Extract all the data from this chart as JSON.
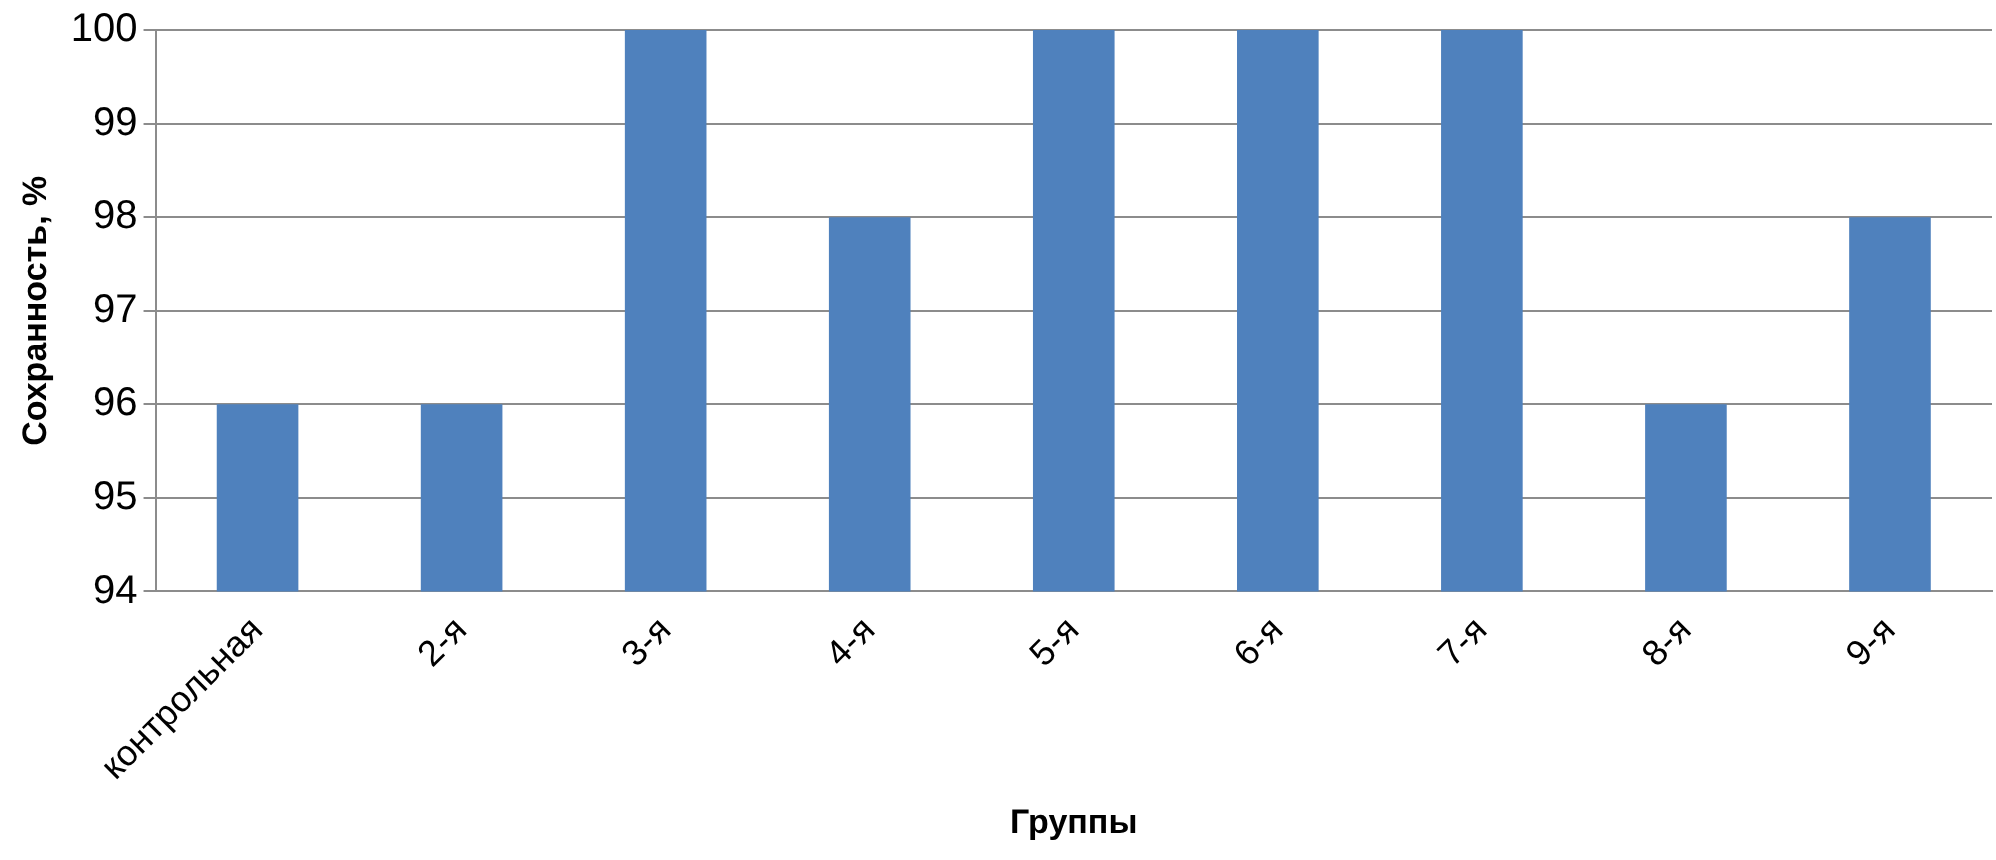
{
  "chart_data": {
    "type": "bar",
    "xlabel": "Группы",
    "ylabel": "Сохранность, %",
    "categories": [
      "контрольная",
      "2-я",
      "3-я",
      "4-я",
      "5-я",
      "6-я",
      "7-я",
      "8-я",
      "9-я"
    ],
    "values": [
      96,
      96,
      100,
      98,
      100,
      100,
      100,
      96,
      98
    ],
    "color": "#4f81bd",
    "ylim": [
      94,
      100
    ],
    "yticks": [
      94,
      95,
      96,
      97,
      98,
      99,
      100
    ],
    "grid": "y",
    "legend": false
  }
}
